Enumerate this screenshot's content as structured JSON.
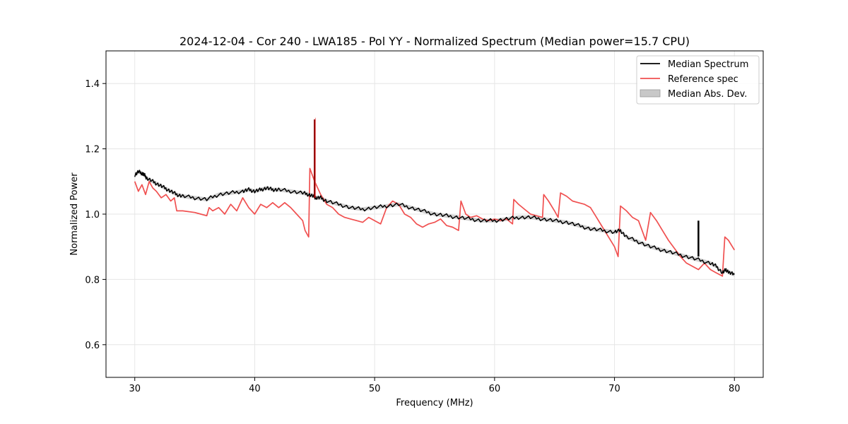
{
  "chart_data": {
    "type": "line",
    "title": "2024-12-04 - Cor 240 - LWA185 - Pol YY - Normalized Spectrum (Median power=15.7 CPU)",
    "xlabel": "Frequency (MHz)",
    "ylabel": "Normalized Power",
    "xlim": [
      27.6,
      82.4
    ],
    "ylim": [
      0.5,
      1.5
    ],
    "xticks": [
      30,
      40,
      50,
      60,
      70,
      80
    ],
    "yticks": [
      0.6,
      0.8,
      1.0,
      1.2,
      1.4
    ],
    "xtick_labels": [
      "30",
      "40",
      "50",
      "60",
      "70",
      "80"
    ],
    "ytick_labels": [
      "0.6",
      "0.8",
      "1.0",
      "1.2",
      "1.4"
    ],
    "grid": true,
    "legend_position": "top-right",
    "legend": [
      "Median Spectrum",
      "Reference spec",
      "Median Abs. Dev."
    ],
    "colors": {
      "median": "#000000",
      "reference": "#f05050",
      "mad": "#b4b4b4",
      "spike": "#8b0000"
    },
    "series": [
      {
        "name": "Median Spectrum",
        "x": [
          30,
          30.3,
          30.6,
          30.8,
          31,
          31.5,
          32,
          32.5,
          33,
          33.5,
          34,
          35,
          36,
          37,
          38,
          39,
          39.5,
          40,
          40.5,
          41,
          41.5,
          42,
          43,
          44,
          44.5,
          44.9,
          45.1,
          45.5,
          46,
          47,
          48,
          49,
          50,
          51,
          52,
          53,
          54,
          55,
          56,
          57,
          58,
          59,
          60,
          61,
          62,
          63,
          64,
          65,
          66,
          67,
          68,
          69,
          70,
          70.5,
          71,
          72,
          73,
          74,
          75,
          76,
          77,
          78,
          78.5,
          79,
          79.3,
          79.6,
          80
        ],
        "y": [
          1.12,
          1.13,
          1.125,
          1.12,
          1.11,
          1.1,
          1.09,
          1.08,
          1.07,
          1.06,
          1.055,
          1.05,
          1.045,
          1.06,
          1.065,
          1.07,
          1.075,
          1.07,
          1.075,
          1.08,
          1.075,
          1.075,
          1.07,
          1.065,
          1.06,
          1.055,
          1.05,
          1.05,
          1.04,
          1.03,
          1.02,
          1.015,
          1.02,
          1.025,
          1.03,
          1.02,
          1.01,
          1.0,
          0.995,
          0.99,
          0.985,
          0.98,
          0.98,
          0.985,
          0.99,
          0.99,
          0.985,
          0.98,
          0.975,
          0.965,
          0.955,
          0.95,
          0.945,
          0.95,
          0.93,
          0.915,
          0.9,
          0.89,
          0.88,
          0.87,
          0.86,
          0.85,
          0.84,
          0.82,
          0.83,
          0.82,
          0.815
        ]
      },
      {
        "name": "Reference spec",
        "x": [
          30,
          30.3,
          30.6,
          30.9,
          31.2,
          31.5,
          31.8,
          32.2,
          32.6,
          33,
          33.3,
          33.5,
          34,
          35,
          35.5,
          36,
          36.2,
          36.5,
          37,
          37.5,
          38,
          38.5,
          39,
          39.5,
          40,
          40.5,
          41,
          41.5,
          42,
          42.5,
          43,
          43.5,
          44,
          44.2,
          44.5,
          44.6,
          45,
          45.5,
          46,
          46.5,
          47,
          47.5,
          48,
          48.5,
          49,
          49.5,
          50,
          50.5,
          51,
          51.5,
          52,
          52.5,
          53,
          53.5,
          54,
          54.5,
          55,
          55.5,
          56,
          56.5,
          57,
          57.2,
          57.3,
          57.6,
          58,
          58.5,
          59,
          59.5,
          60,
          60.5,
          61,
          61.5,
          61.6,
          62,
          62.5,
          63,
          63.5,
          64,
          64.1,
          64.5,
          65,
          65.3,
          65.5,
          66,
          66.5,
          67,
          67.5,
          68,
          68.5,
          69,
          69.5,
          70,
          70.3,
          70.5,
          71,
          71.5,
          72,
          72.3,
          72.6,
          73,
          73.5,
          74,
          74.5,
          75,
          75.5,
          76,
          76.5,
          77,
          77.5,
          78,
          78.5,
          79,
          79.2,
          79.5,
          80
        ],
        "y": [
          1.1,
          1.07,
          1.09,
          1.06,
          1.1,
          1.08,
          1.07,
          1.05,
          1.06,
          1.04,
          1.05,
          1.01,
          1.01,
          1.005,
          1.0,
          0.995,
          1.02,
          1.01,
          1.02,
          1.0,
          1.03,
          1.01,
          1.05,
          1.02,
          1.0,
          1.03,
          1.02,
          1.035,
          1.02,
          1.035,
          1.02,
          1.0,
          0.98,
          0.95,
          0.93,
          1.14,
          1.1,
          1.06,
          1.03,
          1.02,
          1.0,
          0.99,
          0.985,
          0.98,
          0.975,
          0.99,
          0.98,
          0.97,
          1.02,
          1.04,
          1.03,
          1.0,
          0.99,
          0.97,
          0.96,
          0.97,
          0.975,
          0.985,
          0.965,
          0.96,
          0.95,
          1.04,
          1.03,
          1.0,
          0.99,
          0.995,
          0.985,
          0.98,
          0.985,
          0.98,
          0.985,
          0.97,
          1.045,
          1.03,
          1.015,
          1.0,
          0.995,
          0.99,
          1.06,
          1.04,
          1.01,
          0.99,
          1.065,
          1.055,
          1.04,
          1.035,
          1.03,
          1.02,
          0.99,
          0.96,
          0.93,
          0.9,
          0.87,
          1.025,
          1.01,
          0.99,
          0.98,
          0.95,
          0.92,
          1.005,
          0.98,
          0.95,
          0.92,
          0.895,
          0.87,
          0.85,
          0.84,
          0.83,
          0.85,
          0.83,
          0.82,
          0.81,
          0.93,
          0.92,
          0.89
        ]
      }
    ],
    "spikes": [
      {
        "name": "Median spike",
        "x": 45.0,
        "y0": 1.05,
        "y1": 1.29
      },
      {
        "name": "Median spike",
        "x": 77.0,
        "y0": 0.87,
        "y1": 0.98
      }
    ]
  }
}
